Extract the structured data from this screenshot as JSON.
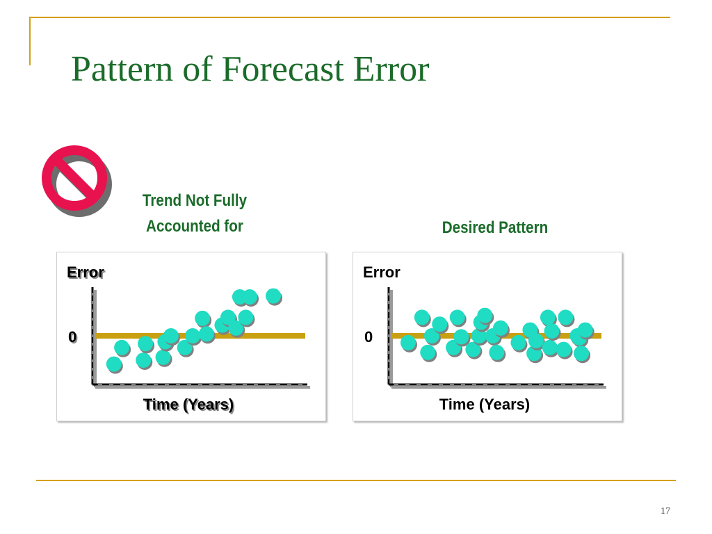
{
  "slide": {
    "title": "Pattern of Forecast Error",
    "page_number": "17"
  },
  "colors": {
    "title": "#1b6b2a",
    "accent_line": "#d4a017",
    "dot_fill": "#1fdcc2",
    "dot_shadow": "#808080",
    "axis": "#000000",
    "zero_line": "#c9a012",
    "no_symbol": "#e8124e"
  },
  "icons": {
    "warning": "prohibited-icon"
  },
  "chart_data": [
    {
      "type": "scatter",
      "title": "Trend Not Fully Accounted for",
      "ylabel": "Error",
      "xlabel": "Time (Years)",
      "zero_label": "0",
      "zero_value": 5,
      "xlim": [
        0,
        10
      ],
      "ylim": [
        0,
        10
      ],
      "text_shadow": true,
      "series": [
        {
          "x": [
            0.7,
            1.1,
            2.2,
            2.3,
            3.2,
            3.3,
            3.6,
            4.3,
            4.7,
            5.2,
            5.4,
            6.2,
            6.5,
            6.9,
            7.1,
            7.4,
            7.6,
            8.8
          ],
          "y": [
            2.1,
            3.8,
            2.5,
            4.2,
            2.8,
            4.4,
            5.0,
            3.8,
            5.0,
            6.8,
            5.2,
            6.1,
            6.9,
            5.8,
            9.0,
            6.9,
            9.0,
            9.1
          ]
        }
      ]
    },
    {
      "type": "scatter",
      "title": "Desired Pattern",
      "ylabel": "Error",
      "xlabel": "Time (Years)",
      "zero_label": "0",
      "zero_value": 5,
      "xlim": [
        0,
        10
      ],
      "ylim": [
        0,
        10
      ],
      "text_shadow": false,
      "series": [
        {
          "x": [
            0.6,
            1.3,
            1.6,
            1.8,
            2.2,
            2.9,
            3.1,
            3.3,
            3.9,
            4.2,
            4.3,
            4.5,
            4.9,
            5.1,
            5.3,
            6.2,
            6.8,
            7.0,
            7.1,
            7.7,
            7.8,
            7.9,
            8.5,
            8.6,
            9.2,
            9.3,
            9.4,
            9.6
          ],
          "y": [
            4.3,
            6.9,
            3.3,
            5.0,
            6.2,
            3.8,
            6.9,
            4.9,
            3.6,
            5.0,
            6.4,
            7.1,
            5.0,
            3.3,
            5.8,
            4.3,
            5.6,
            3.2,
            4.5,
            6.9,
            3.8,
            5.5,
            3.6,
            6.9,
            5.0,
            4.8,
            3.2,
            5.6
          ]
        }
      ]
    }
  ]
}
